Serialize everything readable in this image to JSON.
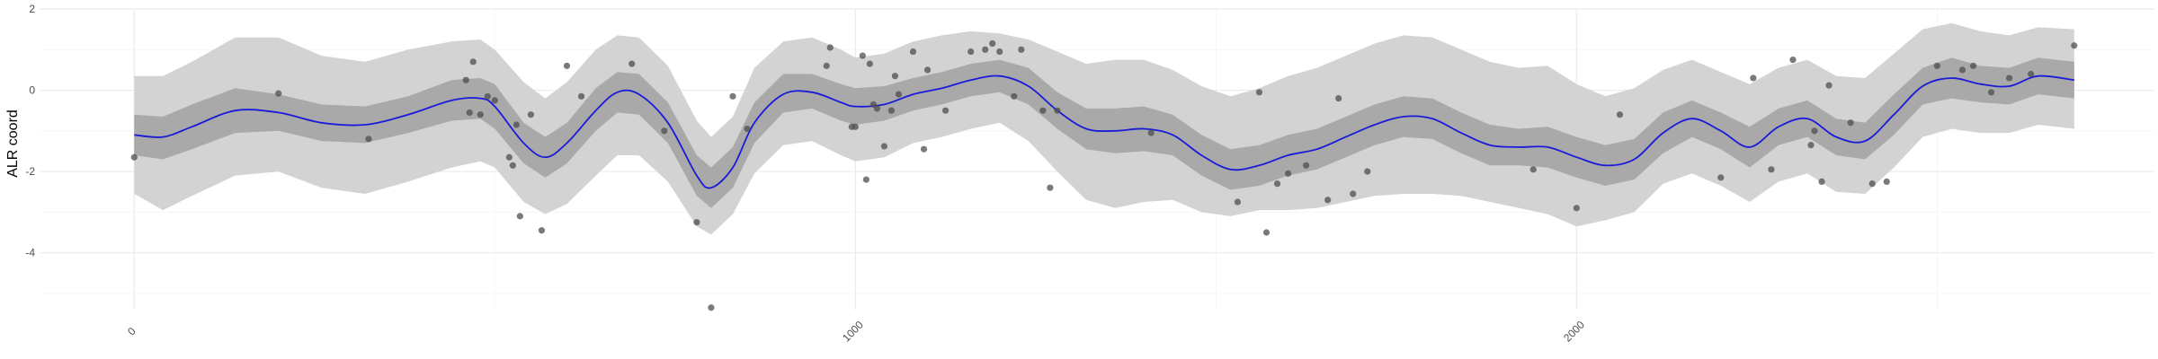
{
  "chart_data": {
    "type": "line",
    "title": "",
    "xlabel": "",
    "ylabel": "ALR coord",
    "xlim": [
      -130,
      2800
    ],
    "ylim": [
      -5.4,
      2.0
    ],
    "x_ticks": [
      0,
      1000,
      2000
    ],
    "x_tick_labels": [
      "0",
      "1000",
      "2000"
    ],
    "y_ticks": [
      2,
      0,
      -2,
      -4
    ],
    "y_tick_labels": [
      "2",
      "0",
      "-2",
      "-4"
    ],
    "grid": true,
    "legend": "none",
    "colors": {
      "mean_line": "#1a1ad9",
      "inner_band": "#a9a9a9",
      "outer_band": "#d3d3d3",
      "points": "#4d4d4d",
      "grid_major": "#ebebeb",
      "grid_minor": "#f4f4f4"
    },
    "series": [
      {
        "role": "mean",
        "x": [
          0,
          40,
          80,
          140,
          200,
          260,
          320,
          380,
          440,
          480,
          500,
          540,
          570,
          600,
          640,
          670,
          700,
          740,
          780,
          800,
          830,
          860,
          900,
          940,
          980,
          1000,
          1040,
          1080,
          1120,
          1160,
          1200,
          1240,
          1280,
          1320,
          1360,
          1400,
          1440,
          1480,
          1520,
          1560,
          1600,
          1640,
          1680,
          1720,
          1760,
          1800,
          1840,
          1880,
          1920,
          1960,
          2000,
          2040,
          2080,
          2120,
          2160,
          2200,
          2240,
          2280,
          2320,
          2360,
          2400,
          2440,
          2480,
          2520,
          2560,
          2600,
          2640,
          2690
        ],
        "y": [
          -1.1,
          -1.15,
          -0.9,
          -0.5,
          -0.55,
          -0.8,
          -0.85,
          -0.6,
          -0.25,
          -0.2,
          -0.4,
          -1.3,
          -1.65,
          -1.3,
          -0.5,
          -0.05,
          -0.1,
          -0.8,
          -2.1,
          -2.4,
          -1.9,
          -0.8,
          -0.1,
          -0.05,
          -0.3,
          -0.4,
          -0.35,
          -0.1,
          0.05,
          0.25,
          0.35,
          0.1,
          -0.5,
          -0.95,
          -1.0,
          -0.95,
          -1.1,
          -1.6,
          -1.95,
          -1.85,
          -1.6,
          -1.45,
          -1.15,
          -0.85,
          -0.65,
          -0.7,
          -1.05,
          -1.35,
          -1.4,
          -1.4,
          -1.65,
          -1.85,
          -1.7,
          -1.05,
          -0.7,
          -1.0,
          -1.4,
          -0.9,
          -0.7,
          -1.15,
          -1.25,
          -0.6,
          0.1,
          0.3,
          0.15,
          0.1,
          0.35,
          0.25
        ]
      },
      {
        "role": "inner_band",
        "x": [
          0,
          40,
          80,
          140,
          200,
          260,
          320,
          380,
          440,
          480,
          500,
          540,
          570,
          600,
          640,
          670,
          700,
          740,
          780,
          800,
          830,
          860,
          900,
          940,
          980,
          1000,
          1040,
          1080,
          1120,
          1160,
          1200,
          1240,
          1280,
          1320,
          1360,
          1400,
          1440,
          1480,
          1520,
          1560,
          1600,
          1640,
          1680,
          1720,
          1760,
          1800,
          1840,
          1880,
          1920,
          1960,
          2000,
          2040,
          2080,
          2120,
          2160,
          2200,
          2240,
          2280,
          2320,
          2360,
          2400,
          2440,
          2480,
          2520,
          2560,
          2600,
          2640,
          2690
        ],
        "lower": [
          -1.6,
          -1.7,
          -1.45,
          -1.05,
          -1.0,
          -1.25,
          -1.3,
          -1.05,
          -0.75,
          -0.7,
          -0.95,
          -1.8,
          -2.15,
          -1.8,
          -1.0,
          -0.55,
          -0.6,
          -1.3,
          -2.6,
          -2.9,
          -2.4,
          -1.3,
          -0.55,
          -0.45,
          -0.75,
          -0.85,
          -0.75,
          -0.5,
          -0.35,
          -0.15,
          -0.05,
          -0.35,
          -0.95,
          -1.45,
          -1.55,
          -1.5,
          -1.6,
          -2.1,
          -2.45,
          -2.35,
          -2.1,
          -1.95,
          -1.65,
          -1.35,
          -1.15,
          -1.2,
          -1.55,
          -1.85,
          -1.85,
          -1.9,
          -2.15,
          -2.35,
          -2.2,
          -1.55,
          -1.15,
          -1.45,
          -1.9,
          -1.35,
          -1.15,
          -1.6,
          -1.7,
          -1.1,
          -0.35,
          -0.2,
          -0.3,
          -0.35,
          -0.1,
          -0.2
        ],
        "upper": [
          -0.6,
          -0.65,
          -0.35,
          0.05,
          -0.1,
          -0.35,
          -0.4,
          -0.15,
          0.25,
          0.3,
          0.15,
          -0.8,
          -1.15,
          -0.8,
          0.05,
          0.45,
          0.4,
          -0.3,
          -1.6,
          -1.9,
          -1.4,
          -0.3,
          0.4,
          0.4,
          0.15,
          0.05,
          0.1,
          0.3,
          0.45,
          0.65,
          0.75,
          0.55,
          -0.05,
          -0.45,
          -0.45,
          -0.4,
          -0.6,
          -1.1,
          -1.45,
          -1.35,
          -1.1,
          -0.95,
          -0.65,
          -0.35,
          -0.15,
          -0.2,
          -0.55,
          -0.85,
          -0.95,
          -0.9,
          -1.15,
          -1.35,
          -1.2,
          -0.55,
          -0.25,
          -0.55,
          -0.9,
          -0.45,
          -0.25,
          -0.7,
          -0.8,
          -0.1,
          0.55,
          0.8,
          0.6,
          0.55,
          0.8,
          0.7
        ]
      },
      {
        "role": "outer_band",
        "x": [
          0,
          40,
          80,
          140,
          200,
          260,
          320,
          380,
          440,
          480,
          500,
          540,
          570,
          600,
          640,
          670,
          700,
          740,
          780,
          800,
          830,
          860,
          900,
          940,
          980,
          1000,
          1040,
          1080,
          1120,
          1160,
          1200,
          1240,
          1280,
          1320,
          1360,
          1400,
          1440,
          1480,
          1520,
          1560,
          1600,
          1640,
          1680,
          1720,
          1760,
          1800,
          1840,
          1880,
          1920,
          1960,
          2000,
          2040,
          2080,
          2120,
          2160,
          2200,
          2240,
          2280,
          2320,
          2360,
          2400,
          2440,
          2480,
          2520,
          2560,
          2600,
          2640,
          2690
        ],
        "lower": [
          -2.55,
          -2.95,
          -2.6,
          -2.1,
          -2.0,
          -2.4,
          -2.55,
          -2.25,
          -1.9,
          -1.75,
          -1.9,
          -2.75,
          -3.05,
          -2.8,
          -2.1,
          -1.6,
          -1.6,
          -2.25,
          -3.35,
          -3.55,
          -3.05,
          -2.05,
          -1.35,
          -1.25,
          -1.6,
          -1.75,
          -1.65,
          -1.3,
          -1.15,
          -0.95,
          -0.8,
          -1.25,
          -2.0,
          -2.7,
          -2.9,
          -2.75,
          -2.7,
          -3.0,
          -3.1,
          -2.95,
          -2.95,
          -2.9,
          -2.75,
          -2.6,
          -2.55,
          -2.55,
          -2.6,
          -2.75,
          -2.9,
          -3.05,
          -3.35,
          -3.2,
          -3.0,
          -2.3,
          -2.05,
          -2.35,
          -2.75,
          -2.25,
          -2.05,
          -2.5,
          -2.55,
          -1.9,
          -1.15,
          -0.95,
          -1.05,
          -1.05,
          -0.85,
          -0.95
        ],
        "upper": [
          0.35,
          0.35,
          0.7,
          1.3,
          1.3,
          0.85,
          0.7,
          1.0,
          1.2,
          1.25,
          1.0,
          0.2,
          -0.2,
          0.2,
          1.0,
          1.35,
          1.3,
          0.6,
          -0.75,
          -1.15,
          -0.65,
          0.55,
          1.2,
          1.3,
          1.0,
          0.8,
          0.9,
          1.2,
          1.35,
          1.45,
          1.4,
          1.25,
          0.95,
          0.65,
          0.75,
          0.75,
          0.5,
          0.1,
          -0.15,
          0.05,
          0.35,
          0.55,
          0.85,
          1.15,
          1.35,
          1.3,
          1.0,
          0.7,
          0.55,
          0.6,
          0.15,
          -0.15,
          0.05,
          0.5,
          0.75,
          0.45,
          0.15,
          0.55,
          0.75,
          0.35,
          0.3,
          0.9,
          1.5,
          1.65,
          1.45,
          1.35,
          1.55,
          1.5
        ]
      },
      {
        "role": "observations",
        "x": [
          0,
          200,
          325,
          460,
          465,
          470,
          480,
          490,
          500,
          520,
          525,
          530,
          535,
          550,
          565,
          600,
          620,
          690,
          735,
          780,
          800,
          830,
          850,
          960,
          965,
          995,
          1000,
          1010,
          1015,
          1020,
          1025,
          1030,
          1040,
          1050,
          1055,
          1060,
          1080,
          1095,
          1100,
          1125,
          1160,
          1180,
          1190,
          1200,
          1220,
          1230,
          1260,
          1270,
          1280,
          1410,
          1530,
          1560,
          1570,
          1585,
          1600,
          1625,
          1655,
          1670,
          1690,
          1710,
          1940,
          2000,
          2060,
          2200,
          2245,
          2270,
          2300,
          2325,
          2330,
          2340,
          2350,
          2380,
          2410,
          2430,
          2500,
          2535,
          2550,
          2575,
          2600,
          2630,
          2690
        ],
        "y": [
          -1.65,
          -0.08,
          -1.2,
          0.25,
          -0.55,
          0.7,
          -0.6,
          -0.15,
          -0.25,
          -1.65,
          -1.85,
          -0.85,
          -3.1,
          -0.6,
          -3.45,
          0.6,
          -0.15,
          0.65,
          -1.0,
          -3.25,
          -5.35,
          -0.15,
          -0.95,
          0.6,
          1.05,
          -0.9,
          -0.9,
          0.85,
          -2.2,
          0.65,
          -0.35,
          -0.45,
          -1.38,
          -0.5,
          0.35,
          -0.1,
          0.95,
          -1.45,
          0.5,
          -0.5,
          0.95,
          1.0,
          1.15,
          0.95,
          -0.15,
          1.0,
          -0.5,
          -2.4,
          -0.5,
          -1.05,
          -2.75,
          -0.05,
          -3.5,
          -2.3,
          -2.05,
          -1.85,
          -2.7,
          -0.2,
          -2.55,
          -2.0,
          -1.95,
          -2.9,
          -0.6,
          -2.15,
          0.3,
          -1.95,
          0.75,
          -1.35,
          -1.0,
          -2.25,
          0.12,
          -0.8,
          -2.3,
          -2.25,
          0.6,
          0.5,
          0.6,
          -0.05,
          0.3,
          0.4,
          1.1
        ]
      }
    ]
  }
}
